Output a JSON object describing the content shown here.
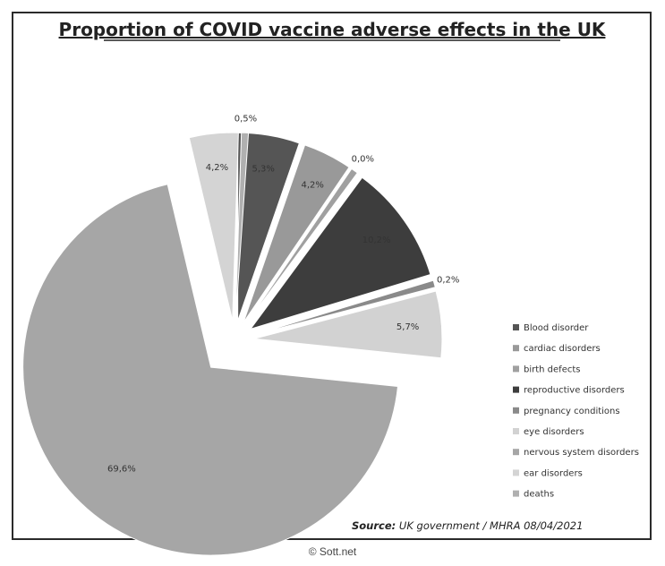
{
  "chart_data": {
    "type": "pie",
    "title": "Proportion of COVID vaccine adverse effects in the UK",
    "categories": [
      "Blood disorder",
      "cardiac disorders",
      "birth defects",
      "reproductive disorders",
      "pregnancy conditions",
      "eye disorders",
      "nervous system disorders",
      "ear disorders",
      "deaths"
    ],
    "values": [
      5.3,
      4.2,
      0.0,
      10.2,
      0.2,
      5.7,
      69.6,
      4.2,
      0.5
    ],
    "labels": [
      "5,3%",
      "4,2%",
      "0,0%",
      "10,2%",
      "0,2%",
      "5,7%",
      "69,6%",
      "4,2%",
      "0,5%"
    ],
    "colors": [
      "#555555",
      "#999999",
      "#a0a0a0",
      "#3d3d3d",
      "#8a8a8a",
      "#d2d2d2",
      "#a6a6a6",
      "#d4d4d4",
      "#b0b0b0"
    ],
    "legend_position": "right",
    "exploded": true,
    "source_prefix": "Source:",
    "source_text": " UK government  / MHRA 08/04/2021"
  },
  "credit": "© Sott.net"
}
